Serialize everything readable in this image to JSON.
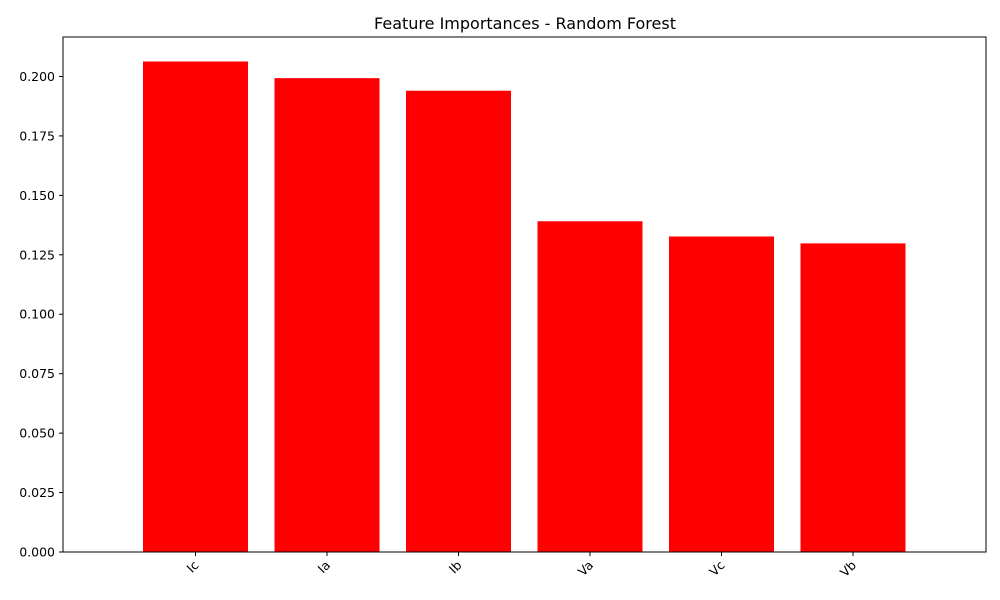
{
  "chart_data": {
    "type": "bar",
    "title": "Feature Importances - Random Forest",
    "xlabel": "",
    "ylabel": "",
    "categories": [
      "Ic",
      "Ia",
      "Ib",
      "Va",
      "Vc",
      "Vb"
    ],
    "values": [
      0.2063,
      0.1993,
      0.194,
      0.1391,
      0.1327,
      0.1298
    ],
    "bar_color": "#ff0000",
    "ylim": [
      0,
      0.2166
    ],
    "yticks": [
      0.0,
      0.025,
      0.05,
      0.075,
      0.1,
      0.125,
      0.15,
      0.175,
      0.2
    ],
    "ytick_labels": [
      "0.000",
      "0.025",
      "0.050",
      "0.075",
      "0.100",
      "0.125",
      "0.150",
      "0.175",
      "0.200"
    ],
    "xtick_rotation": 45,
    "grid": false,
    "legend": "none"
  }
}
